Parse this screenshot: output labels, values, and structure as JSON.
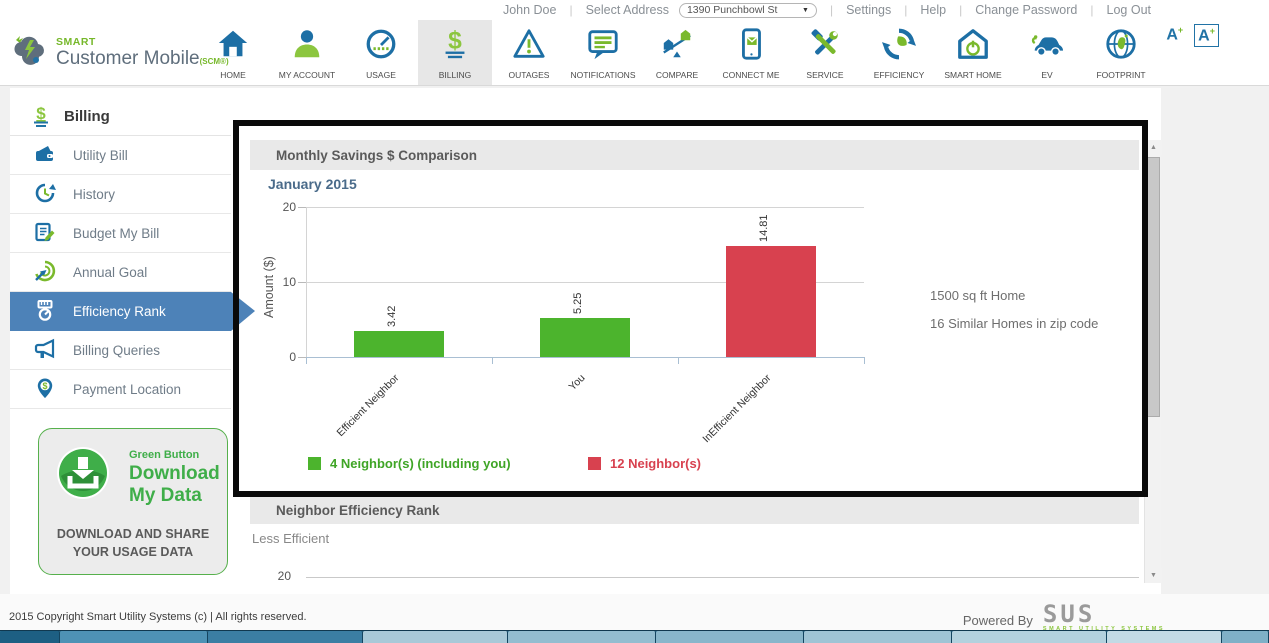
{
  "colors": {
    "brand_green": "#76b82a",
    "icon_blue": "#1d6fa5",
    "selected_blue": "#4d82b8",
    "bar_green": "#4cb42d",
    "bar_red": "#d8414f",
    "highlight_frame": "#0a0a0a"
  },
  "top_bar": {
    "user": "John Doe",
    "select_address_label": "Select Address",
    "address": "1390 Punchbowl St",
    "links": [
      "Settings",
      "Help",
      "Change Password",
      "Log Out"
    ]
  },
  "brand": {
    "smart": "SMART",
    "product": "Customer Mobile",
    "suffix": "(SCM®)"
  },
  "font_controls": {
    "letter": "A",
    "plus": "+"
  },
  "nav": {
    "items": [
      {
        "label": "HOME",
        "icon": "home-icon",
        "active": false
      },
      {
        "label": "MY ACCOUNT",
        "icon": "my-account-icon",
        "active": false
      },
      {
        "label": "USAGE",
        "icon": "usage-icon",
        "active": false
      },
      {
        "label": "BILLING",
        "icon": "billing-icon",
        "active": true
      },
      {
        "label": "OUTAGES",
        "icon": "outages-icon",
        "active": false
      },
      {
        "label": "NOTIFICATIONS",
        "icon": "notifications-icon",
        "active": false
      },
      {
        "label": "COMPARE",
        "icon": "compare-icon",
        "active": false
      },
      {
        "label": "CONNECT ME",
        "icon": "connect-me-icon",
        "active": false
      },
      {
        "label": "SERVICE",
        "icon": "service-icon",
        "active": false
      },
      {
        "label": "EFFICIENCY",
        "icon": "efficiency-icon",
        "active": false
      },
      {
        "label": "SMART HOME",
        "icon": "smart-home-icon",
        "active": false
      },
      {
        "label": "EV",
        "icon": "ev-icon",
        "active": false
      },
      {
        "label": "FOOTPRINT",
        "icon": "footprint-icon",
        "active": false
      }
    ]
  },
  "sidebar": {
    "header": "Billing",
    "items": [
      {
        "label": "Utility Bill",
        "icon": "utility-bill-icon",
        "active": false
      },
      {
        "label": "History",
        "icon": "history-icon",
        "active": false
      },
      {
        "label": "Budget My Bill",
        "icon": "budget-my-bill-icon",
        "active": false
      },
      {
        "label": "Annual Goal",
        "icon": "annual-goal-icon",
        "active": false
      },
      {
        "label": "Efficiency Rank",
        "icon": "efficiency-rank-icon",
        "active": true
      },
      {
        "label": "Billing Queries",
        "icon": "billing-queries-icon",
        "active": false
      },
      {
        "label": "Payment Location",
        "icon": "payment-location-icon",
        "active": false
      }
    ],
    "green_button": {
      "line1": "Green Button",
      "line2": "Download",
      "line3": "My Data",
      "caption": "DOWNLOAD AND SHARE YOUR USAGE DATA"
    }
  },
  "chart_panel": {
    "title": "Monthly Savings $ Comparison",
    "subtitle": "January 2015",
    "side_notes": [
      "1500 sq ft Home",
      "16 Similar Homes in zip code"
    ]
  },
  "chart_data": {
    "type": "bar",
    "title": "Monthly Savings $ Comparison",
    "subtitle": "January 2015",
    "categories": [
      "Efficient Neighbor",
      "You",
      "InEfficient Neighbor"
    ],
    "values": [
      3.42,
      5.25,
      14.81
    ],
    "bar_colors": [
      "#4cb42d",
      "#4cb42d",
      "#d8414f"
    ],
    "value_labels": [
      "3.42",
      "5.25",
      "14.81"
    ],
    "xlabel": "",
    "ylabel": "Amount ($)",
    "ylim": [
      0,
      20
    ],
    "yticks": [
      0,
      10,
      20
    ],
    "grid": true,
    "legend_position": "bottom",
    "legend": [
      {
        "label": "4 Neighbor(s) (including you)",
        "color": "#4cb42d",
        "text_color": "#3fa526"
      },
      {
        "label": "12 Neighbor(s)",
        "color": "#d8414f",
        "text_color": "#d8414f"
      }
    ],
    "annotations": [
      "1500 sq ft Home",
      "16 Similar Homes in zip code"
    ]
  },
  "section2": {
    "title": "Neighbor Efficiency Rank",
    "less_label": "Less Efficient",
    "tick": "20"
  },
  "footer": {
    "copyright": "2015 Copyright Smart Utility Systems (c) | All rights reserved.",
    "powered_by": "Powered By",
    "sus": "SUS",
    "sus_sub": "SMART UTILITY SYSTEMS"
  }
}
